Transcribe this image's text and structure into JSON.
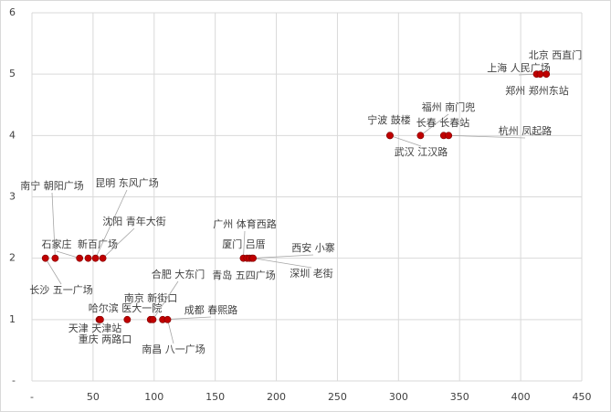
{
  "chart_data": {
    "type": "scatter",
    "color": "#c00000",
    "grid": true,
    "xlim": [
      0,
      450
    ],
    "ylim": [
      0,
      6
    ],
    "xticks": [
      {
        "value": 0,
        "label": "-"
      },
      50,
      100,
      150,
      200,
      250,
      300,
      350,
      400,
      450
    ],
    "yticks": [
      {
        "value": 0,
        "label": "-"
      },
      1,
      2,
      3,
      4,
      5,
      6
    ],
    "labels": [
      "长沙 五一广场",
      "南宁 朝阳广场",
      "石家庄",
      "新百广场",
      "昆明 东风广场",
      "沈阳 青年大街",
      "广州 体育西路",
      "厦门 吕厝",
      "青岛 五四广场",
      "西安 小寨",
      "深圳 老街",
      "天津 天津站",
      "重庆 两路口",
      "哈尔滨 医大一院",
      "南京 新街口",
      "合肥 大东门",
      "成都 春熙路",
      "南昌 八一广场",
      "宁波 鼓楼",
      "武汉 江汉路",
      "福州 南门兜",
      "长春 长春站",
      "杭州 凤起路",
      "上海 人民广场",
      "北京 西直门",
      "郑州 郑州东站"
    ],
    "x": [
      11,
      19,
      39,
      46,
      52,
      58,
      173,
      176,
      178,
      180,
      181,
      55,
      56,
      78,
      97,
      99,
      107,
      111,
      293,
      293,
      318,
      337,
      341,
      413,
      421,
      416
    ],
    "values": [
      2,
      2,
      2,
      2,
      2,
      2,
      2,
      2,
      2,
      2,
      2,
      1,
      1,
      1,
      1,
      1,
      1,
      1,
      4,
      4,
      4,
      4,
      4,
      5,
      5,
      5
    ]
  }
}
